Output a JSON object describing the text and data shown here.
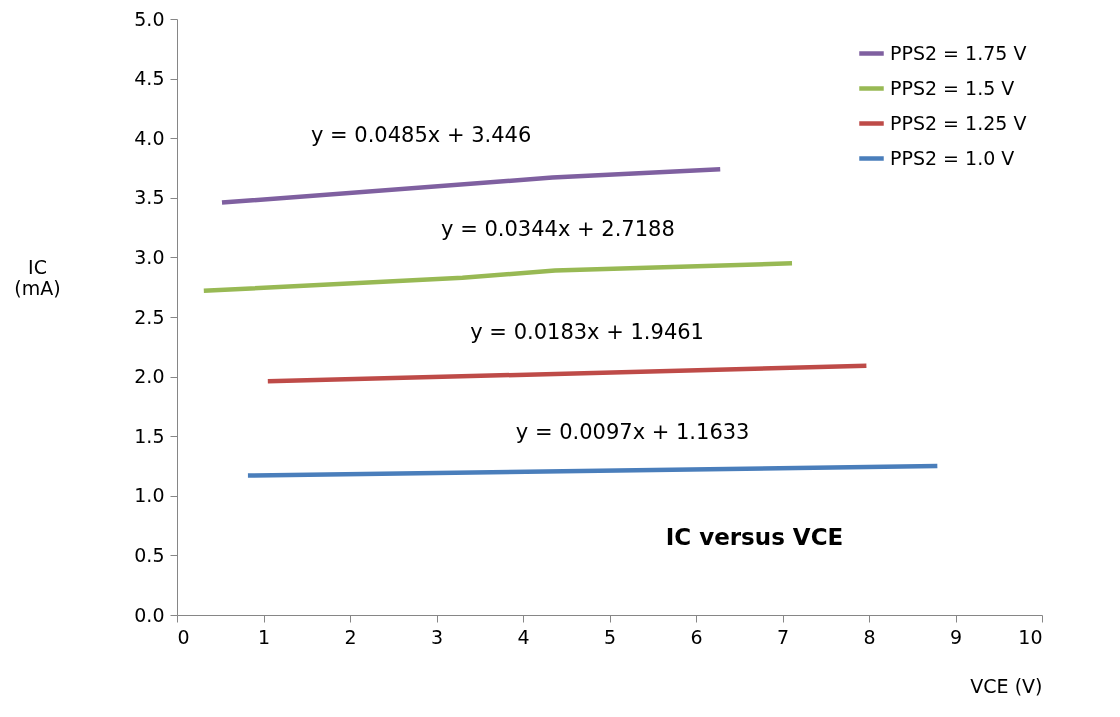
{
  "chart_data": {
    "type": "line",
    "title": "IC versus VCE",
    "xlabel": "VCE (V)",
    "ylabel": "IC (mA)",
    "xlim": [
      0,
      10
    ],
    "xticks": [
      0,
      1,
      2,
      3,
      4,
      5,
      6,
      7,
      8,
      9,
      10
    ],
    "ylim": [
      0,
      5
    ],
    "yticks": [
      {
        "value": 0,
        "label": "0.0"
      },
      0.5,
      {
        "value": 1,
        "label": "1.0"
      },
      1.5,
      {
        "value": 2,
        "label": "2.0"
      },
      2.5,
      {
        "value": 3,
        "label": "3.0"
      },
      3.5,
      {
        "value": 4,
        "label": "4.0"
      },
      4.5,
      {
        "value": 5,
        "label": "5.0"
      }
    ],
    "grid": false,
    "legend": "top right",
    "marker": "none",
    "line_style": "solid",
    "series": [
      {
        "name": "PPS2 = 1.75 V",
        "color": "#7f60a0",
        "x": [
          0.52,
          4.34,
          6.28
        ],
        "values": [
          3.46,
          3.67,
          3.74
        ]
      },
      {
        "name": "PPS2 = 1.5 V",
        "color": "#98b954",
        "x": [
          0.31,
          3.3,
          4.37,
          7.11
        ],
        "values": [
          2.72,
          2.83,
          2.89,
          2.95
        ]
      },
      {
        "name": "PPS2 = 1.25 V",
        "color": "#be4b48",
        "x": [
          1.05,
          7.97
        ],
        "values": [
          1.96,
          2.09
        ]
      },
      {
        "name": "PPS2 = 1.0 V",
        "color": "#4a7ebb",
        "x": [
          0.82,
          8.79
        ],
        "values": [
          1.17,
          1.25
        ]
      }
    ],
    "annotations": [
      "y = 0.0485x + 3.446",
      "y = 0.0344x + 2.7188",
      "y = 0.0183x + 1.9461",
      "y = 0.0097x + 1.1633"
    ]
  }
}
